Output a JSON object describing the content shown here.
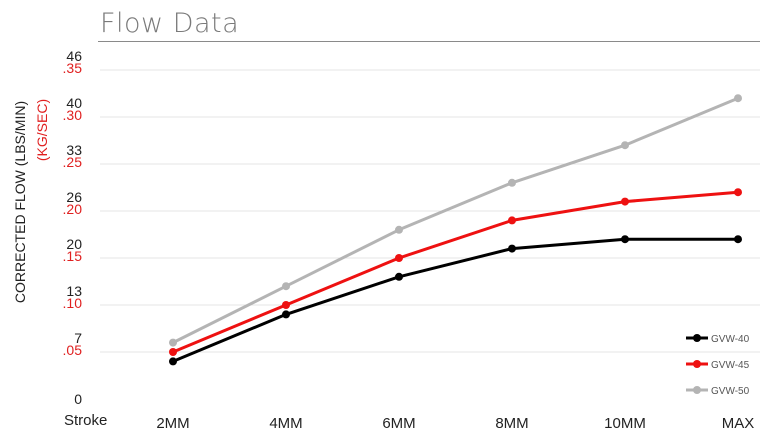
{
  "section_title": "Flow Data",
  "x_axis_prefix": "Stroke",
  "colors": {
    "grid": "#e6e6e6",
    "primary_tick": "#222222",
    "secondary_tick": "#e02020"
  },
  "chart_data": {
    "type": "line",
    "categories": [
      "2MM",
      "4MM",
      "6MM",
      "8MM",
      "10MM",
      "MAX"
    ],
    "ylabel": "CORRECTED FLOW (LBS/MIN)",
    "ylabel_secondary": "(KG/SEC)",
    "yticks_primary": [
      "0",
      "7",
      "13",
      "20",
      "26",
      "33",
      "40",
      "46"
    ],
    "yticks_secondary": [
      ".05",
      ".10",
      ".15",
      ".20",
      ".25",
      ".30",
      ".35"
    ],
    "ylim": [
      0,
      0.35
    ],
    "grid": true,
    "legend_position": "bottom-right",
    "series": [
      {
        "name": "GVW-40",
        "color": "#000000",
        "values": [
          0.04,
          0.09,
          0.13,
          0.16,
          0.17,
          0.17
        ]
      },
      {
        "name": "GVW-45",
        "color": "#ee1111",
        "values": [
          0.05,
          0.1,
          0.15,
          0.19,
          0.21,
          0.22
        ]
      },
      {
        "name": "GVW-50",
        "color": "#b4b4b4",
        "values": [
          0.06,
          0.12,
          0.18,
          0.23,
          0.27,
          0.32
        ]
      }
    ]
  }
}
